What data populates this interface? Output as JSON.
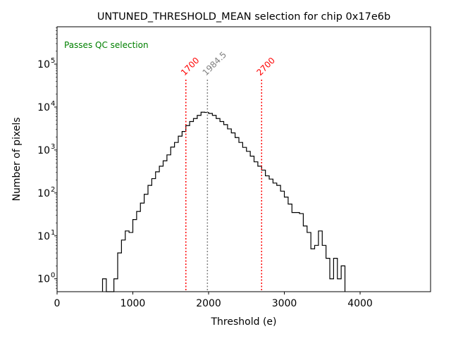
{
  "chart_data": {
    "type": "histogram",
    "title": "UNTUNED_THRESHOLD_MEAN selection for chip 0x17e6b",
    "xlabel": "Threshold (e)",
    "ylabel": "Number of pixels",
    "xlim": [
      0,
      4930
    ],
    "ylim_log10": [
      -0.3,
      5.87
    ],
    "yscale": "log",
    "grid": false,
    "x_ticks": [
      0,
      1000,
      2000,
      3000,
      4000
    ],
    "x_tick_labels": [
      "0",
      "1000",
      "2000",
      "3000",
      "4000"
    ],
    "y_ticks": [
      0,
      1,
      2,
      3,
      4,
      5
    ],
    "y_tick_labels": [
      "10",
      "10",
      "10",
      "10",
      "10",
      "10"
    ],
    "y_tick_exponents": [
      "0",
      "1",
      "2",
      "3",
      "4",
      "5"
    ],
    "annotation": {
      "text": "Passes QC selection",
      "color": "#008000",
      "position": "top-left"
    },
    "bin_width": 50,
    "bins": [
      {
        "x": 600,
        "count": 1
      },
      {
        "x": 650,
        "count": 0
      },
      {
        "x": 700,
        "count": 0
      },
      {
        "x": 750,
        "count": 1
      },
      {
        "x": 800,
        "count": 4
      },
      {
        "x": 850,
        "count": 8
      },
      {
        "x": 900,
        "count": 13
      },
      {
        "x": 950,
        "count": 12
      },
      {
        "x": 1000,
        "count": 24
      },
      {
        "x": 1050,
        "count": 37
      },
      {
        "x": 1100,
        "count": 58
      },
      {
        "x": 1150,
        "count": 93
      },
      {
        "x": 1200,
        "count": 150
      },
      {
        "x": 1250,
        "count": 215
      },
      {
        "x": 1300,
        "count": 310
      },
      {
        "x": 1350,
        "count": 420
      },
      {
        "x": 1400,
        "count": 560
      },
      {
        "x": 1450,
        "count": 770
      },
      {
        "x": 1500,
        "count": 1170
      },
      {
        "x": 1550,
        "count": 1500
      },
      {
        "x": 1600,
        "count": 2100
      },
      {
        "x": 1650,
        "count": 2700
      },
      {
        "x": 1700,
        "count": 3700
      },
      {
        "x": 1750,
        "count": 4600
      },
      {
        "x": 1800,
        "count": 5400
      },
      {
        "x": 1850,
        "count": 6400
      },
      {
        "x": 1900,
        "count": 7600
      },
      {
        "x": 1950,
        "count": 7500
      },
      {
        "x": 2000,
        "count": 7100
      },
      {
        "x": 2050,
        "count": 6400
      },
      {
        "x": 2100,
        "count": 5400
      },
      {
        "x": 2150,
        "count": 4600
      },
      {
        "x": 2200,
        "count": 3900
      },
      {
        "x": 2250,
        "count": 3100
      },
      {
        "x": 2300,
        "count": 2500
      },
      {
        "x": 2350,
        "count": 1950
      },
      {
        "x": 2400,
        "count": 1500
      },
      {
        "x": 2450,
        "count": 1150
      },
      {
        "x": 2500,
        "count": 930
      },
      {
        "x": 2550,
        "count": 720
      },
      {
        "x": 2600,
        "count": 530
      },
      {
        "x": 2650,
        "count": 420
      },
      {
        "x": 2700,
        "count": 340
      },
      {
        "x": 2750,
        "count": 250
      },
      {
        "x": 2800,
        "count": 210
      },
      {
        "x": 2850,
        "count": 170
      },
      {
        "x": 2900,
        "count": 150
      },
      {
        "x": 2950,
        "count": 110
      },
      {
        "x": 3000,
        "count": 80
      },
      {
        "x": 3050,
        "count": 55
      },
      {
        "x": 3100,
        "count": 35
      },
      {
        "x": 3150,
        "count": 35
      },
      {
        "x": 3200,
        "count": 33
      },
      {
        "x": 3250,
        "count": 17
      },
      {
        "x": 3300,
        "count": 12
      },
      {
        "x": 3350,
        "count": 5
      },
      {
        "x": 3400,
        "count": 6
      },
      {
        "x": 3450,
        "count": 13
      },
      {
        "x": 3500,
        "count": 6
      },
      {
        "x": 3550,
        "count": 3
      },
      {
        "x": 3600,
        "count": 1
      },
      {
        "x": 3650,
        "count": 3
      },
      {
        "x": 3700,
        "count": 1
      },
      {
        "x": 3750,
        "count": 2
      }
    ],
    "vlines": [
      {
        "x": 1700,
        "label": "1700",
        "color": "#ff0000"
      },
      {
        "x": 1984.5,
        "label": "1984.5",
        "color": "#808080"
      },
      {
        "x": 2700,
        "label": "2700",
        "color": "#ff0000"
      }
    ]
  }
}
